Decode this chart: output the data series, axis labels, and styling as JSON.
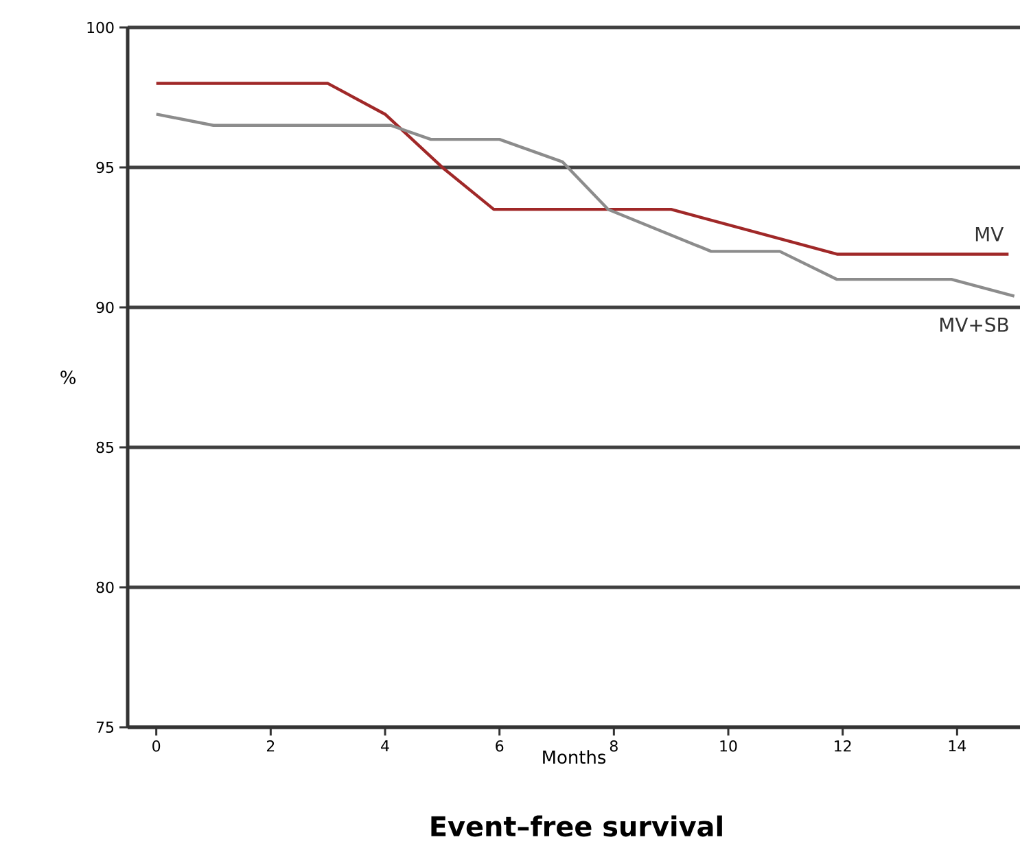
{
  "chart_data": {
    "type": "line",
    "title": "Event–free  survival",
    "xlabel": "Months",
    "ylabel": "%",
    "xlim": [
      -0.5,
      15.1
    ],
    "ylim": [
      75,
      100
    ],
    "xticks": [
      0,
      2,
      4,
      6,
      8,
      10,
      12,
      14
    ],
    "yticks": [
      75,
      80,
      85,
      90,
      95,
      100
    ],
    "grid": "y",
    "legend": false,
    "series": [
      {
        "name": "MV",
        "color": "#a02828",
        "x": [
          0,
          3.0,
          4.0,
          5.0,
          5.9,
          9.0,
          11.9,
          14.9
        ],
        "values": [
          98.0,
          98.0,
          96.9,
          95.0,
          93.5,
          93.5,
          91.9,
          91.9
        ]
      },
      {
        "name": "MV+SB",
        "color": "#8c8c8c",
        "x": [
          0,
          1.0,
          4.1,
          4.8,
          6.0,
          7.1,
          7.9,
          9.7,
          10.9,
          11.9,
          13.9,
          15.0
        ],
        "values": [
          96.9,
          96.5,
          96.5,
          96.0,
          96.0,
          95.2,
          93.5,
          92.0,
          92.0,
          91.0,
          91.0,
          90.4
        ]
      }
    ]
  }
}
